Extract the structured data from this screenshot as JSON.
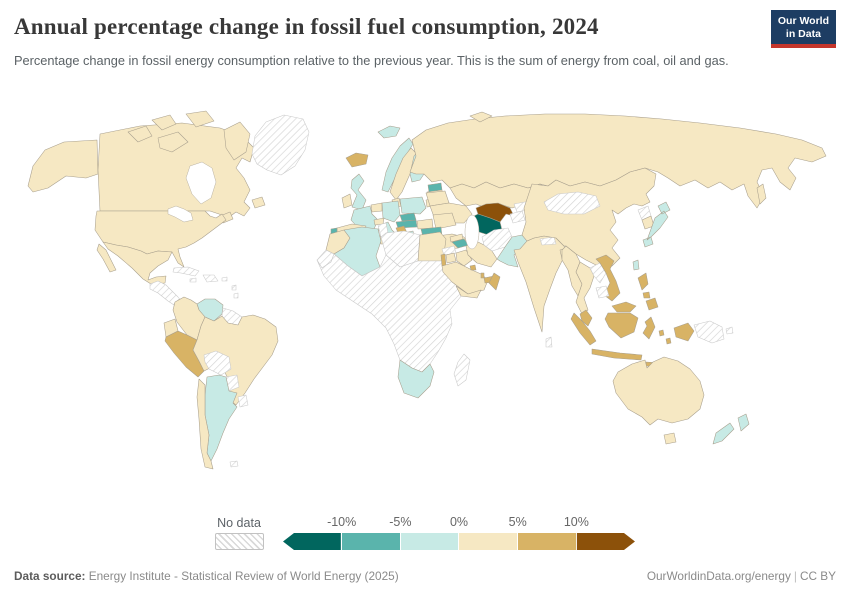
{
  "header": {
    "title": "Annual percentage change in fossil fuel consumption, 2024",
    "subtitle": "Percentage change in fossil energy consumption relative to the previous year. This is the sum of energy from coal, oil and gas.",
    "logo_line1": "Our World",
    "logo_line2": "in Data",
    "logo_colors": {
      "background": "#1d3d63",
      "underline": "#c5362c"
    }
  },
  "footer": {
    "source_label": "Data source:",
    "source_text": " Energy Institute - Statistical Review of World Energy (2025)",
    "url": "OurWorldinData.org/energy",
    "separator": "|",
    "license": "CC BY"
  },
  "chart_data": {
    "type": "choropleth_map",
    "title": "Annual percentage change in fossil fuel consumption, 2024",
    "unit": "%",
    "year": "2024",
    "legend": {
      "no_data_label": "No data",
      "no_data_pattern": "diagonal-hatch",
      "tick_labels": [
        "-10%",
        "-5%",
        "0%",
        "5%",
        "10%"
      ],
      "bins": [
        {
          "id": "m10",
          "range": "< -10%",
          "color": "#01665e"
        },
        {
          "id": "m5",
          "range": "-10% to -5%",
          "color": "#5ab4ac"
        },
        {
          "id": "m0",
          "range": "-5% to 0%",
          "color": "#c7eae5"
        },
        {
          "id": "p5",
          "range": "0% to 5%",
          "color": "#f6e8c3"
        },
        {
          "id": "p10",
          "range": "5% to 10%",
          "color": "#d8b365"
        },
        {
          "id": "p10plus",
          "range": "> 10%",
          "color": "#8c510a"
        }
      ]
    },
    "countries": {
      "canada": "p5",
      "usa": "p5",
      "mexico": "p5",
      "greenland": "nodata",
      "central-america": "nodata",
      "cuba": "nodata",
      "hispaniola": "nodata",
      "caribbean-islands": "nodata",
      "venezuela": "m0",
      "colombia": "p5",
      "guyanas": "nodata",
      "ecuador": "p5",
      "peru": "p10",
      "brazil": "p5",
      "bolivia": "nodata",
      "paraguay": "nodata",
      "uruguay": "nodata",
      "chile": "p5",
      "argentina": "m0",
      "falkland-islands": "nodata",
      "iceland": "p10",
      "svalbard": "m0",
      "norway": "m0",
      "sweden": "p5",
      "finland": "m0",
      "denmark": "p5",
      "estonia": "m5",
      "latvia": "p5",
      "lithuania": "p5",
      "united-kingdom": "m0",
      "ireland": "p5",
      "netherlands-belgium": "p5",
      "germany": "m0",
      "poland": "m0",
      "belarus": "p5",
      "ukraine": "p5",
      "czechia": "m5",
      "austria": "m5",
      "hungary": "p5",
      "france": "m0",
      "switzerland": "p5",
      "spain": "p5",
      "portugal": "m5",
      "italy": "m0",
      "sardinia": "p5",
      "croatia": "p10",
      "serbia": "m0",
      "romania": "p5",
      "bulgaria": "m5",
      "greece": "p5",
      "turkey": "p5",
      "russia": "p5",
      "kazakhstan": "p5",
      "georgia": "p5",
      "azerbaijan": "m5",
      "uzbekistan": "p10plus",
      "turkmenistan": "m10",
      "tajikistan": "nodata",
      "kyrgyzstan": "nodata",
      "afghanistan": "nodata",
      "pakistan": "m0",
      "iran": "p5",
      "iraq": "p5",
      "syria": "nodata",
      "israel": "p10",
      "jordan": "p5",
      "saudi-arabia": "p5",
      "kuwait": "p10",
      "qatar": "p10",
      "uae": "p10",
      "oman": "p10",
      "yemen": "p5",
      "morocco": "p5",
      "western-sahara": "nodata",
      "algeria": "m0",
      "tunisia": "nodata",
      "libya": "nodata",
      "egypt": "p5",
      "africa-sub-saharan": "nodata",
      "south-africa": "m0",
      "madagascar": "nodata",
      "india": "p5",
      "nepal": "nodata",
      "sri-lanka": "nodata",
      "bangladesh": "p5",
      "china": "p5",
      "mongolia": "nodata",
      "north-korea": "nodata",
      "south-korea": "p5",
      "japan": "m0",
      "taiwan": "m0",
      "myanmar": "p5",
      "thailand": "p5",
      "laos": "nodata",
      "cambodia": "nodata",
      "vietnam": "p10",
      "malaysia": "p10",
      "indonesia": "p10",
      "philippines": "p10",
      "papua-new-guinea": "nodata",
      "australia": "p5",
      "new-zealand": "m0"
    }
  }
}
